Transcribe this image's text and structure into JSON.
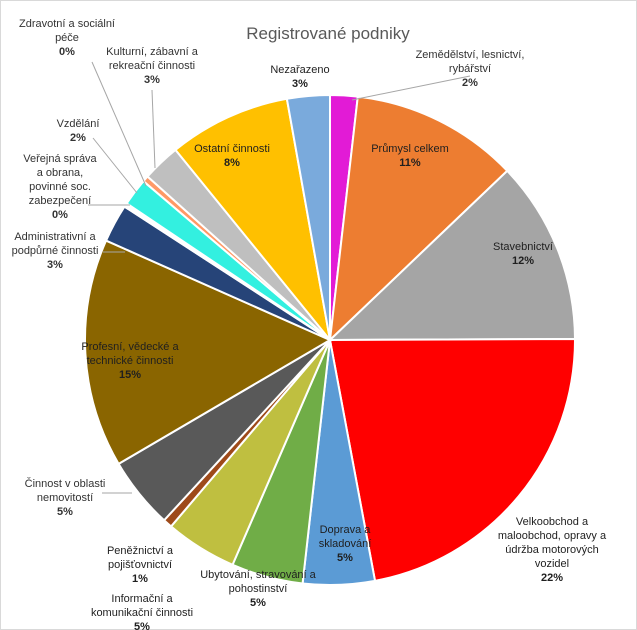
{
  "chart_data": {
    "type": "pie",
    "title": "Registrované podniky",
    "slices": [
      {
        "label": [
          "Zemědělství, lesnictví,",
          "rybářství"
        ],
        "value_label": "2%",
        "value": 1.8,
        "color": "#e21bd6"
      },
      {
        "label": [
          "Průmysl celkem"
        ],
        "value_label": "11%",
        "value": 11,
        "color": "#ed7d31"
      },
      {
        "label": [
          "Stavebnictví"
        ],
        "value_label": "12%",
        "value": 12,
        "color": "#a5a5a5"
      },
      {
        "label": [
          "Velkoobchod a",
          "maloobchod, opravy a",
          "údržba motorových",
          "vozidel"
        ],
        "value_label": "22%",
        "value": 22,
        "color": "#ff0000"
      },
      {
        "label": [
          "Doprava a",
          "skladování"
        ],
        "value_label": "5%",
        "value": 4.7,
        "color": "#5b9bd5"
      },
      {
        "label": [
          "Ubytování, stravování a",
          "pohostinství"
        ],
        "value_label": "5%",
        "value": 4.7,
        "color": "#70ad47"
      },
      {
        "label": [
          "Informační a",
          "komunikační činnosti"
        ],
        "value_label": "5%",
        "value": 4.7,
        "color": "#bfbf40"
      },
      {
        "label": [
          "Peněžnictví a",
          "pojišťovnictví"
        ],
        "value_label": "1%",
        "value": 0.6,
        "color": "#9e4a1a"
      },
      {
        "label": [
          "Činnost v oblasti",
          "nemovitostí"
        ],
        "value_label": "5%",
        "value": 4.7,
        "color": "#595959"
      },
      {
        "label": [
          "Profesní, vědecké a",
          "technické činnosti"
        ],
        "value_label": "15%",
        "value": 15,
        "color": "#8a6500"
      },
      {
        "label": [
          "Administrativní a",
          "podpůrné činnosti"
        ],
        "value_label": "3%",
        "value": 2.5,
        "color": "#264478"
      },
      {
        "label": [
          "Veřejná správa",
          "a obrana,",
          "povinné soc.",
          "zabezpečení"
        ],
        "value_label": "0%",
        "value": 0.25,
        "color": "#ffffff"
      },
      {
        "label": [
          "Vzdělání"
        ],
        "value_label": "2%",
        "value": 1.8,
        "color": "#33f0e0"
      },
      {
        "label": [
          "Zdravotní a sociální",
          "péče"
        ],
        "value_label": "0%",
        "value": 0.4,
        "color": "#ff9966"
      },
      {
        "label": [
          "Kulturní, zábavní a",
          "rekreační činnosti"
        ],
        "value_label": "3%",
        "value": 2.5,
        "color": "#bfbfbf"
      },
      {
        "label": [
          "Ostatní činnosti"
        ],
        "value_label": "8%",
        "value": 8,
        "color": "#ffc000"
      },
      {
        "label": [
          "Nezařazeno"
        ],
        "value_label": "3%",
        "value": 2.8,
        "color": "#7aaadc"
      }
    ]
  }
}
